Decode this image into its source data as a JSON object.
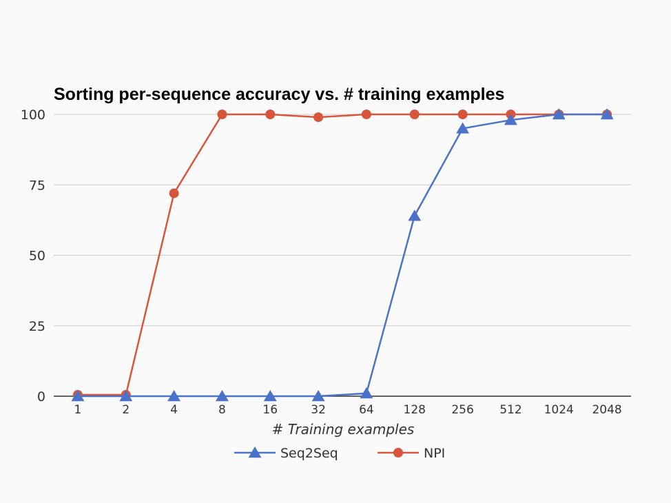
{
  "chart_data": {
    "type": "line",
    "title": "Sorting per-sequence accuracy vs. # training examples",
    "xlabel": "# Training examples",
    "ylabel": "",
    "categories": [
      "1",
      "2",
      "4",
      "8",
      "16",
      "32",
      "64",
      "128",
      "256",
      "512",
      "1024",
      "2048"
    ],
    "y_ticks": [
      "0",
      "25",
      "50",
      "75",
      "100"
    ],
    "ylim": [
      0,
      100
    ],
    "grid": true,
    "legend_position": "bottom",
    "series": [
      {
        "name": "Seq2Seq",
        "color": "#4a72c9",
        "marker": "triangle",
        "values": [
          0,
          0,
          0,
          0,
          0,
          0,
          1,
          64,
          95,
          98,
          100,
          100
        ]
      },
      {
        "name": "NPI",
        "color": "#d9553a",
        "marker": "circle",
        "values": [
          0.5,
          0.5,
          72,
          100,
          100,
          99,
          100,
          100,
          100,
          100,
          100,
          100
        ]
      }
    ]
  }
}
